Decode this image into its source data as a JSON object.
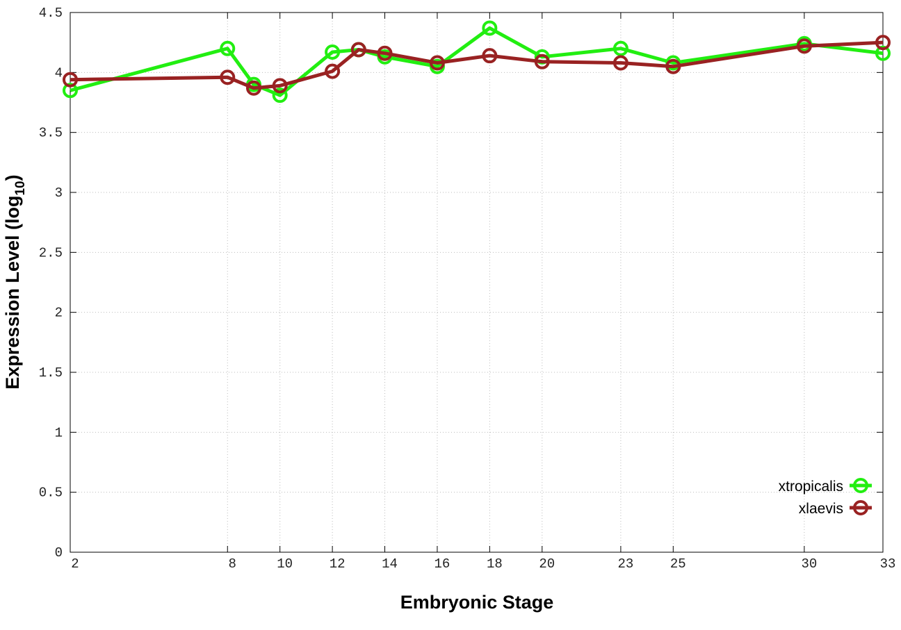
{
  "chart_data": {
    "type": "line",
    "x_label": "Embryonic Stage",
    "y_label": [
      "Expression Level (log",
      "10",
      ")"
    ],
    "x": [
      2,
      8,
      9,
      10,
      12,
      13,
      14,
      16,
      18,
      20,
      23,
      25,
      30,
      33
    ],
    "series": [
      {
        "name": "xtropicalis",
        "color": "#22ee11",
        "values": [
          3.85,
          4.2,
          3.9,
          3.81,
          4.17,
          4.19,
          4.13,
          4.05,
          4.37,
          4.13,
          4.2,
          4.08,
          4.24,
          4.16
        ]
      },
      {
        "name": "xlaevis",
        "color": "#992222",
        "values": [
          3.94,
          3.96,
          3.87,
          3.89,
          4.01,
          4.19,
          4.16,
          4.08,
          4.14,
          4.09,
          4.08,
          4.05,
          4.22,
          4.25
        ]
      }
    ],
    "xlim": [
      2,
      33
    ],
    "xticks": [
      2,
      8,
      10,
      12,
      14,
      16,
      18,
      20,
      23,
      25,
      30,
      33
    ],
    "ylim": [
      0,
      4.5
    ],
    "yticks": [
      0,
      0.5,
      1,
      1.5,
      2,
      2.5,
      3,
      3.5,
      4,
      4.5
    ],
    "grid": true,
    "legend": "lower right"
  }
}
